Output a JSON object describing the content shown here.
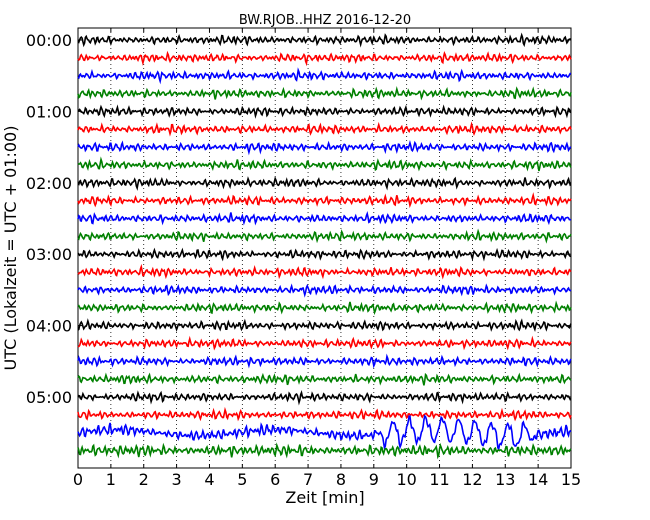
{
  "chart_data": {
    "type": "line",
    "title": "BW.RJOB..HHZ 2016-12-20",
    "xlabel": "Zeit  [min]",
    "ylabel": "UTC (Lokalzeit = UTC + 01:00)",
    "xlim": [
      0,
      15
    ],
    "x_ticks": [
      "0",
      "1",
      "2",
      "3",
      "4",
      "5",
      "6",
      "7",
      "8",
      "9",
      "10",
      "11",
      "12",
      "13",
      "14",
      "15"
    ],
    "y_ticks": [
      "00:00",
      "01:00",
      "02:00",
      "03:00",
      "04:00",
      "05:00"
    ],
    "row_interval_min": 15,
    "row_count": 24,
    "color_cycle": [
      "#000000",
      "#ff0000",
      "#0000ff",
      "#008000"
    ],
    "grid": "vertical dotted lines at each minute",
    "annotation": "large-amplitude oscillation in the 05:30 trace from about 9 to 14 min"
  }
}
